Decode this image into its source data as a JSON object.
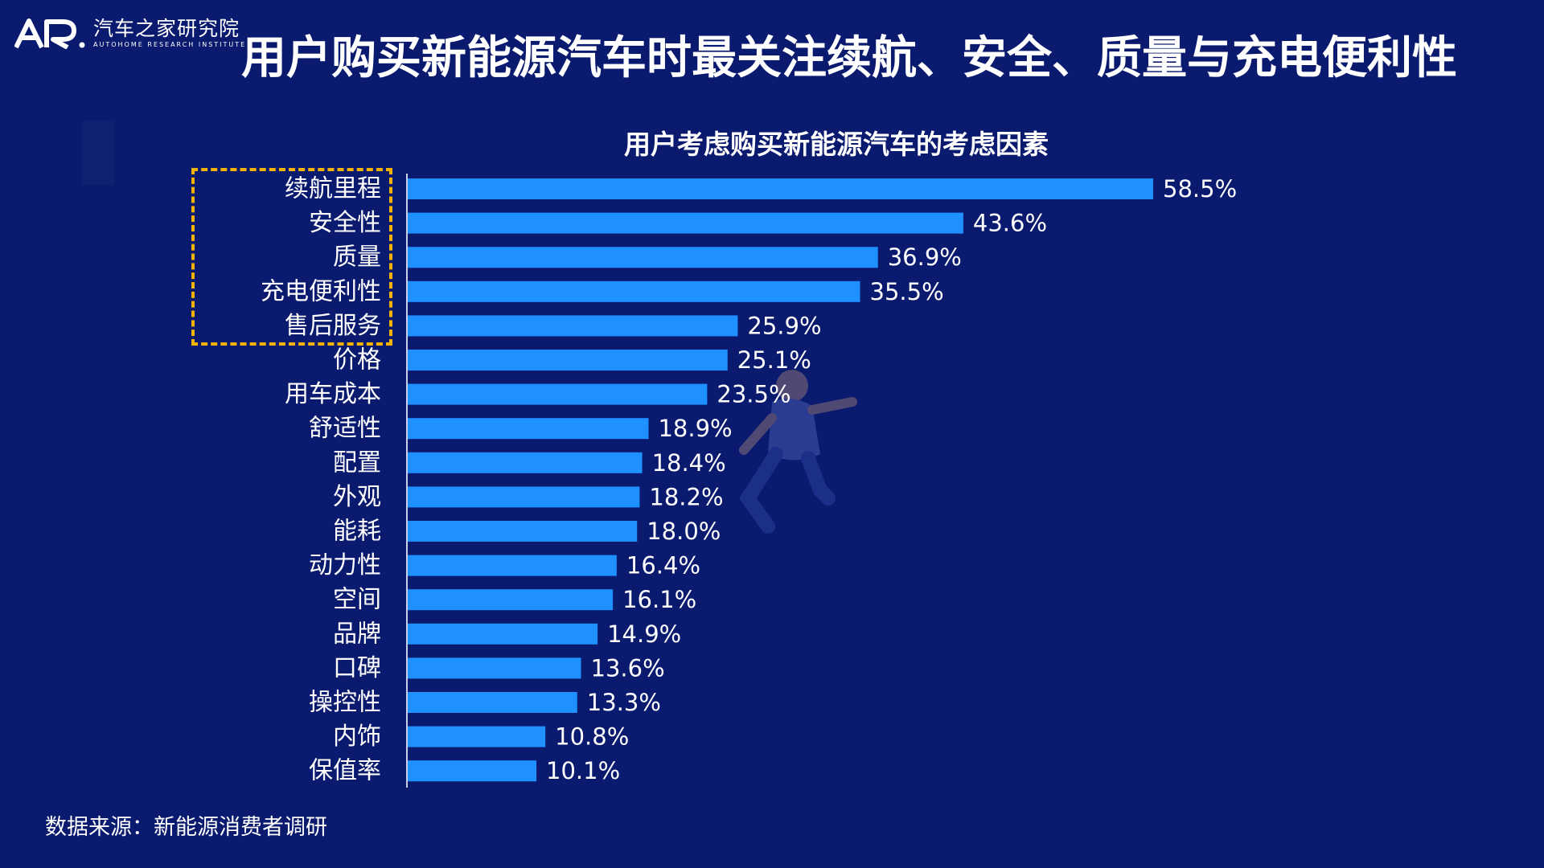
{
  "logo": {
    "name_cn": "汽车之家研究院",
    "name_en": "AUTOHOME RESEARCH INSTITUTE"
  },
  "headline": "用户购买新能源汽车时最关注续航、安全、质量与充电便利性",
  "source": "数据来源：新能源消费者调研",
  "colors": {
    "background": "#0a1a6e",
    "bar": "#1e90ff",
    "highlight": "#f6b400",
    "text": "#ffffff"
  },
  "chart_data": {
    "type": "bar",
    "orientation": "horizontal",
    "title": "用户考虑购买新能源汽车的考虑因素",
    "categories": [
      "续航里程",
      "安全性",
      "质量",
      "充电便利性",
      "售后服务",
      "价格",
      "用车成本",
      "舒适性",
      "配置",
      "外观",
      "能耗",
      "动力性",
      "空间",
      "品牌",
      "口碑",
      "操控性",
      "内饰",
      "保值率"
    ],
    "values": [
      58.5,
      43.6,
      36.9,
      35.5,
      25.9,
      25.1,
      23.5,
      18.9,
      18.4,
      18.2,
      18.0,
      16.4,
      16.1,
      14.9,
      13.6,
      13.3,
      10.8,
      10.1
    ],
    "value_labels": [
      "58.5%",
      "43.6%",
      "36.9%",
      "35.5%",
      "25.9%",
      "25.1%",
      "23.5%",
      "18.9%",
      "18.4%",
      "18.2%",
      "18.0%",
      "16.4%",
      "16.1%",
      "14.9%",
      "13.6%",
      "13.3%",
      "10.8%",
      "10.1%"
    ],
    "highlighted_categories": [
      "续航里程",
      "安全性",
      "质量",
      "充电便利性",
      "售后服务"
    ],
    "xlim": [
      0,
      58.5
    ],
    "grid": false,
    "legend": "none"
  }
}
